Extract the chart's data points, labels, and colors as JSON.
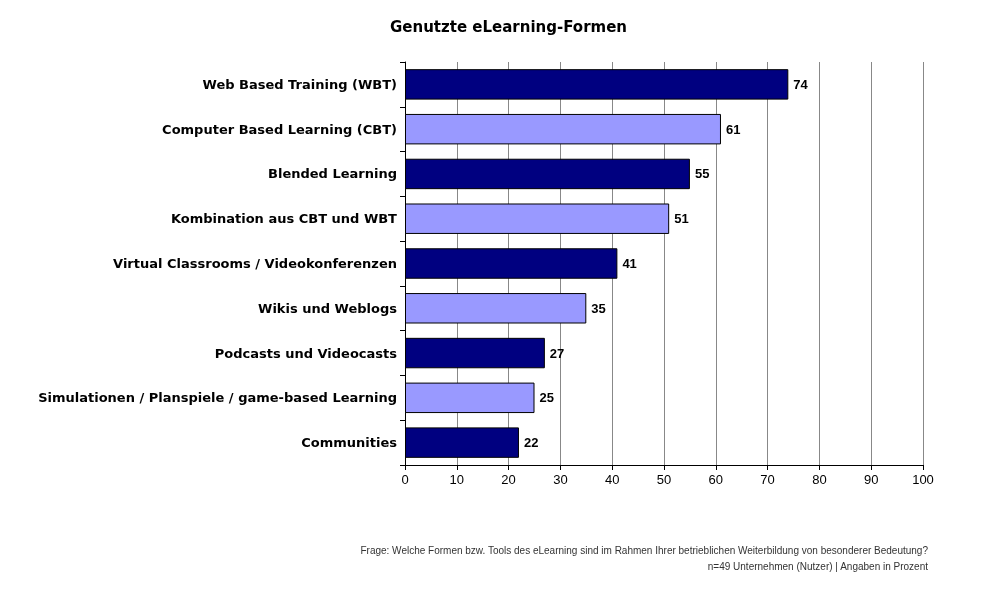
{
  "chart_data": {
    "type": "bar",
    "orientation": "horizontal",
    "title": "Genutzte eLearning-Formen",
    "categories": [
      "Web Based Training (WBT)",
      "Computer Based Learning (CBT)",
      "Blended Learning",
      "Kombination aus CBT und WBT",
      "Virtual Classrooms / Videokonferenzen",
      "Wikis und Weblogs",
      "Podcasts und Videocasts",
      "Simulationen / Planspiele / game-based Learning",
      "Communities"
    ],
    "values": [
      74,
      61,
      55,
      51,
      41,
      35,
      27,
      25,
      22
    ],
    "colors": [
      "#000080",
      "#9999ff",
      "#000080",
      "#9999ff",
      "#000080",
      "#9999ff",
      "#000080",
      "#9999ff",
      "#000080"
    ],
    "xlim": [
      0,
      100
    ],
    "xticks": [
      0,
      10,
      20,
      30,
      40,
      50,
      60,
      70,
      80,
      90,
      100
    ],
    "grid": "x",
    "data_labels": true,
    "annotations": [
      "Frage: Welche Formen bzw. Tools des eLearning sind im Rahmen Ihrer betrieblichen Weiterbildung von besonderer Bedeutung?",
      "n=49 Unternehmen (Nutzer) | Angaben in Prozent"
    ]
  }
}
